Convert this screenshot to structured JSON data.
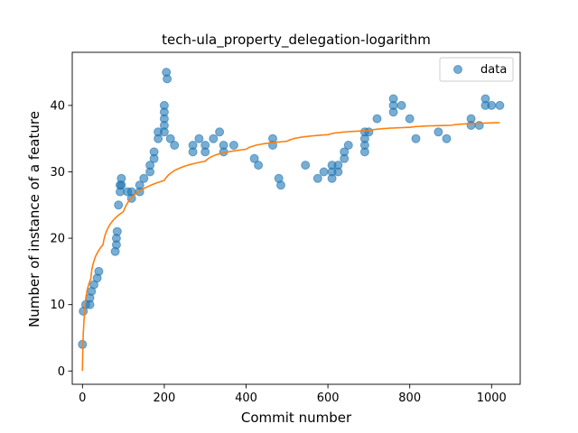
{
  "chart_data": {
    "type": "scatter",
    "title": "tech-ula_property_delegation-logarithm",
    "xlabel": "Commit number",
    "ylabel": "Number of instance of a feature",
    "xlim": [
      -25,
      1070
    ],
    "ylim": [
      -2,
      48
    ],
    "xticks": [
      0,
      200,
      400,
      600,
      800,
      1000
    ],
    "yticks": [
      0,
      10,
      20,
      30,
      40
    ],
    "grid": false,
    "legend": {
      "position": "top-right",
      "entries": [
        "data"
      ]
    },
    "colors": {
      "data": "#1f77b4",
      "fit": "#ff7f0e"
    },
    "series": [
      {
        "name": "data",
        "kind": "scatter",
        "segments": [
          [
            0,
            4,
            4
          ],
          [
            2,
            9,
            9
          ],
          [
            8,
            10,
            10
          ],
          [
            18,
            10,
            11
          ],
          [
            22,
            12,
            12
          ],
          [
            28,
            13,
            13
          ],
          [
            36,
            14,
            14
          ],
          [
            40,
            15,
            15
          ],
          [
            80,
            18,
            18
          ],
          [
            83,
            19,
            20
          ],
          [
            85,
            21,
            21
          ],
          [
            88,
            25,
            25
          ],
          [
            92,
            27,
            28
          ],
          [
            95,
            28,
            29
          ],
          [
            110,
            27,
            27
          ],
          [
            120,
            26,
            27
          ],
          [
            140,
            27,
            28
          ],
          [
            150,
            29,
            29
          ],
          [
            165,
            30,
            31
          ],
          [
            175,
            32,
            33
          ],
          [
            185,
            35,
            36
          ],
          [
            200,
            36,
            40
          ],
          [
            205,
            45,
            45
          ],
          [
            207,
            44,
            44
          ],
          [
            215,
            35,
            35
          ],
          [
            225,
            34,
            34
          ],
          [
            270,
            33,
            34
          ],
          [
            285,
            35,
            35
          ],
          [
            300,
            33,
            34
          ],
          [
            320,
            35,
            35
          ],
          [
            335,
            36,
            36
          ],
          [
            345,
            33,
            34
          ],
          [
            370,
            34,
            34
          ],
          [
            420,
            32,
            32
          ],
          [
            430,
            31,
            31
          ],
          [
            465,
            34,
            35
          ],
          [
            480,
            29,
            29
          ],
          [
            485,
            28,
            28
          ],
          [
            545,
            31,
            31
          ],
          [
            575,
            29,
            29
          ],
          [
            590,
            30,
            30
          ],
          [
            610,
            29,
            31
          ],
          [
            625,
            30,
            31
          ],
          [
            640,
            32,
            33
          ],
          [
            650,
            34,
            34
          ],
          [
            690,
            33,
            36
          ],
          [
            700,
            36,
            36
          ],
          [
            720,
            38,
            38
          ],
          [
            760,
            39,
            41
          ],
          [
            780,
            40,
            40
          ],
          [
            800,
            38,
            38
          ],
          [
            815,
            35,
            35
          ],
          [
            870,
            36,
            36
          ],
          [
            890,
            35,
            35
          ],
          [
            950,
            37,
            38
          ],
          [
            970,
            37,
            37
          ],
          [
            985,
            40,
            41
          ],
          [
            1000,
            40,
            40
          ],
          [
            1020,
            40,
            40
          ]
        ]
      },
      {
        "name": "",
        "kind": "line",
        "model": "logarithmic",
        "x_range": [
          0,
          1020
        ],
        "samples": [
          [
            0,
            0
          ],
          [
            5,
            8.5
          ],
          [
            20,
            13.8
          ],
          [
            50,
            19.0
          ],
          [
            100,
            24.0
          ],
          [
            200,
            28.7
          ],
          [
            300,
            31.6
          ],
          [
            400,
            33.4
          ],
          [
            500,
            34.6
          ],
          [
            600,
            35.6
          ],
          [
            700,
            36.2
          ],
          [
            800,
            36.7
          ],
          [
            900,
            37.0
          ],
          [
            1020,
            37.4
          ]
        ]
      }
    ]
  }
}
